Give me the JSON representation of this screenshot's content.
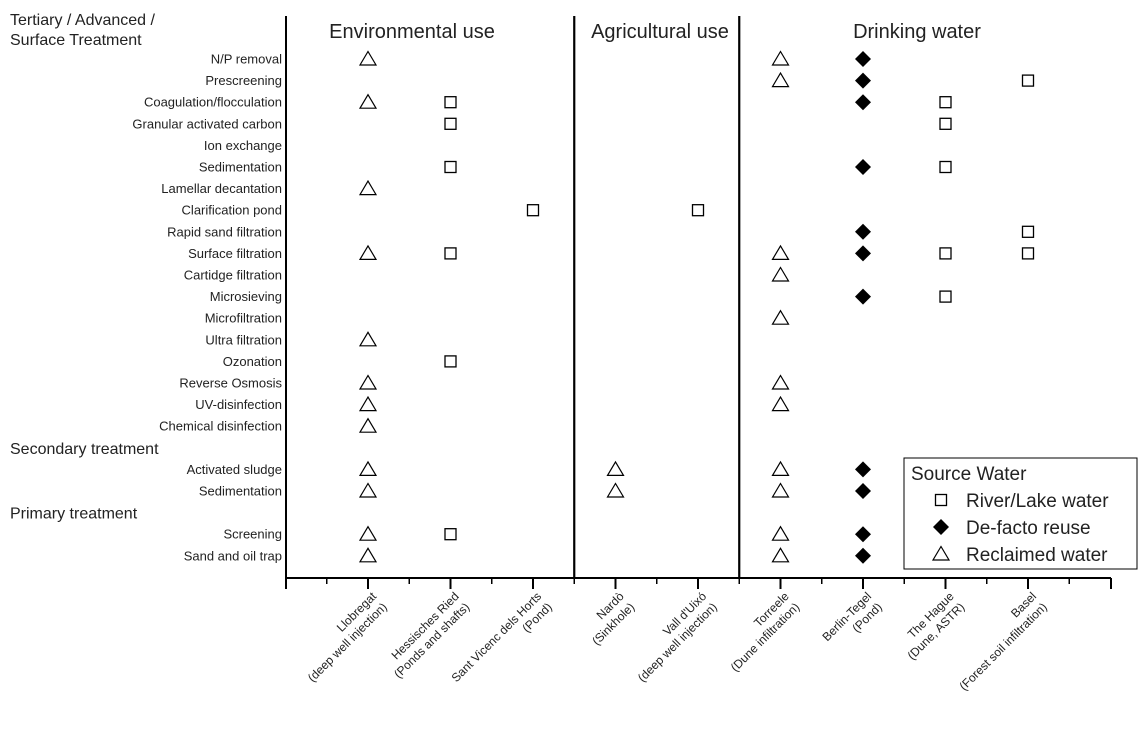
{
  "chart_data": {
    "type": "scatter",
    "section_titles": [
      "Environmental use",
      "Agricultural use",
      "Drinking water"
    ],
    "sites": [
      {
        "line1": "Llobregat",
        "line2": "(deep well injection)"
      },
      {
        "line1": "Hessisches Ried",
        "line2": "(Ponds and shafts)"
      },
      {
        "line1": "Sant Vicenc dels Horts",
        "line2": "(Pond)"
      },
      {
        "line1": "Nardò",
        "line2": "(Sinkhole)"
      },
      {
        "line1": "Vall d'Uixó",
        "line2": "(deep well injection)"
      },
      {
        "line1": "Torreele",
        "line2": "(Dune infiltration)"
      },
      {
        "line1": "Berlin-Tegel",
        "line2": "(Pond)"
      },
      {
        "line1": "The Hague",
        "line2": "(Dune, ASTR)"
      },
      {
        "line1": "Basel",
        "line2": "(Forest soil infiltration)"
      }
    ],
    "section_dividers_after_site": [
      2,
      4
    ],
    "groups": [
      {
        "heading": [
          "Tertiary / Advanced /",
          "Surface Treatment"
        ],
        "categories": [
          "N/P removal",
          "Prescreening",
          "Coagulation/flocculation",
          "Granular activated carbon",
          "Ion exchange",
          "Sedimentation",
          "Lamellar decantation",
          "Clarification pond",
          "Rapid sand filtration",
          "Surface filtration",
          "Cartidge filtration",
          "Microsieving",
          "Microfiltration",
          "Ultra filtration",
          "Ozonation",
          "Reverse Osmosis",
          "UV-disinfection",
          "Chemical disinfection"
        ]
      },
      {
        "heading": [
          "Secondary treatment"
        ],
        "categories": [
          "Activated sludge",
          "Sedimentation"
        ]
      },
      {
        "heading": [
          "Primary treatment"
        ],
        "categories": [
          "Screening",
          "Sand and oil trap"
        ]
      }
    ],
    "legend": {
      "title": "Source Water",
      "placement": "bottom-right",
      "entries": [
        {
          "marker": "square",
          "label": "River/Lake water"
        },
        {
          "marker": "diamond",
          "label": "De-facto reuse"
        },
        {
          "marker": "triangle",
          "label": "Reclaimed water"
        }
      ]
    },
    "points": [
      {
        "site": 0,
        "category": "N/P removal",
        "marker": "triangle"
      },
      {
        "site": 5,
        "category": "N/P removal",
        "marker": "triangle"
      },
      {
        "site": 6,
        "category": "N/P removal",
        "marker": "diamond"
      },
      {
        "site": 5,
        "category": "Prescreening",
        "marker": "triangle"
      },
      {
        "site": 6,
        "category": "Prescreening",
        "marker": "diamond"
      },
      {
        "site": 8,
        "category": "Prescreening",
        "marker": "square"
      },
      {
        "site": 0,
        "category": "Coagulation/flocculation",
        "marker": "triangle"
      },
      {
        "site": 1,
        "category": "Coagulation/flocculation",
        "marker": "square"
      },
      {
        "site": 6,
        "category": "Coagulation/flocculation",
        "marker": "diamond"
      },
      {
        "site": 7,
        "category": "Coagulation/flocculation",
        "marker": "square"
      },
      {
        "site": 1,
        "category": "Granular activated carbon",
        "marker": "square"
      },
      {
        "site": 7,
        "category": "Granular activated carbon",
        "marker": "square"
      },
      {
        "site": 1,
        "category": "Sedimentation",
        "group": 0,
        "marker": "square"
      },
      {
        "site": 6,
        "category": "Sedimentation",
        "group": 0,
        "marker": "diamond"
      },
      {
        "site": 7,
        "category": "Sedimentation",
        "group": 0,
        "marker": "square"
      },
      {
        "site": 0,
        "category": "Lamellar decantation",
        "marker": "triangle"
      },
      {
        "site": 2,
        "category": "Clarification pond",
        "marker": "square"
      },
      {
        "site": 4,
        "category": "Clarification pond",
        "marker": "square"
      },
      {
        "site": 6,
        "category": "Rapid sand filtration",
        "marker": "diamond"
      },
      {
        "site": 8,
        "category": "Rapid sand filtration",
        "marker": "square"
      },
      {
        "site": 0,
        "category": "Surface filtration",
        "marker": "triangle"
      },
      {
        "site": 1,
        "category": "Surface filtration",
        "marker": "square"
      },
      {
        "site": 5,
        "category": "Surface filtration",
        "marker": "triangle"
      },
      {
        "site": 6,
        "category": "Surface filtration",
        "marker": "diamond"
      },
      {
        "site": 7,
        "category": "Surface filtration",
        "marker": "square"
      },
      {
        "site": 8,
        "category": "Surface filtration",
        "marker": "square"
      },
      {
        "site": 5,
        "category": "Cartidge filtration",
        "marker": "triangle"
      },
      {
        "site": 6,
        "category": "Microsieving",
        "marker": "diamond"
      },
      {
        "site": 7,
        "category": "Microsieving",
        "marker": "square"
      },
      {
        "site": 5,
        "category": "Microfiltration",
        "marker": "triangle"
      },
      {
        "site": 0,
        "category": "Ultra filtration",
        "marker": "triangle"
      },
      {
        "site": 1,
        "category": "Ozonation",
        "marker": "square"
      },
      {
        "site": 0,
        "category": "Reverse Osmosis",
        "marker": "triangle"
      },
      {
        "site": 5,
        "category": "Reverse Osmosis",
        "marker": "triangle"
      },
      {
        "site": 0,
        "category": "UV-disinfection",
        "marker": "triangle"
      },
      {
        "site": 5,
        "category": "UV-disinfection",
        "marker": "triangle"
      },
      {
        "site": 0,
        "category": "Chemical disinfection",
        "marker": "triangle"
      },
      {
        "site": 0,
        "category": "Activated sludge",
        "marker": "triangle"
      },
      {
        "site": 3,
        "category": "Activated sludge",
        "marker": "triangle"
      },
      {
        "site": 5,
        "category": "Activated sludge",
        "marker": "triangle"
      },
      {
        "site": 6,
        "category": "Activated sludge",
        "marker": "diamond"
      },
      {
        "site": 0,
        "category": "Sedimentation",
        "group": 1,
        "marker": "triangle"
      },
      {
        "site": 3,
        "category": "Sedimentation",
        "group": 1,
        "marker": "triangle"
      },
      {
        "site": 5,
        "category": "Sedimentation",
        "group": 1,
        "marker": "triangle"
      },
      {
        "site": 6,
        "category": "Sedimentation",
        "group": 1,
        "marker": "diamond"
      },
      {
        "site": 0,
        "category": "Screening",
        "marker": "triangle"
      },
      {
        "site": 1,
        "category": "Screening",
        "marker": "square"
      },
      {
        "site": 5,
        "category": "Screening",
        "marker": "triangle"
      },
      {
        "site": 6,
        "category": "Screening",
        "marker": "diamond"
      },
      {
        "site": 0,
        "category": "Sand and oil trap",
        "marker": "triangle"
      },
      {
        "site": 5,
        "category": "Sand and oil trap",
        "marker": "triangle"
      },
      {
        "site": 6,
        "category": "Sand and oil trap",
        "marker": "diamond"
      }
    ]
  }
}
